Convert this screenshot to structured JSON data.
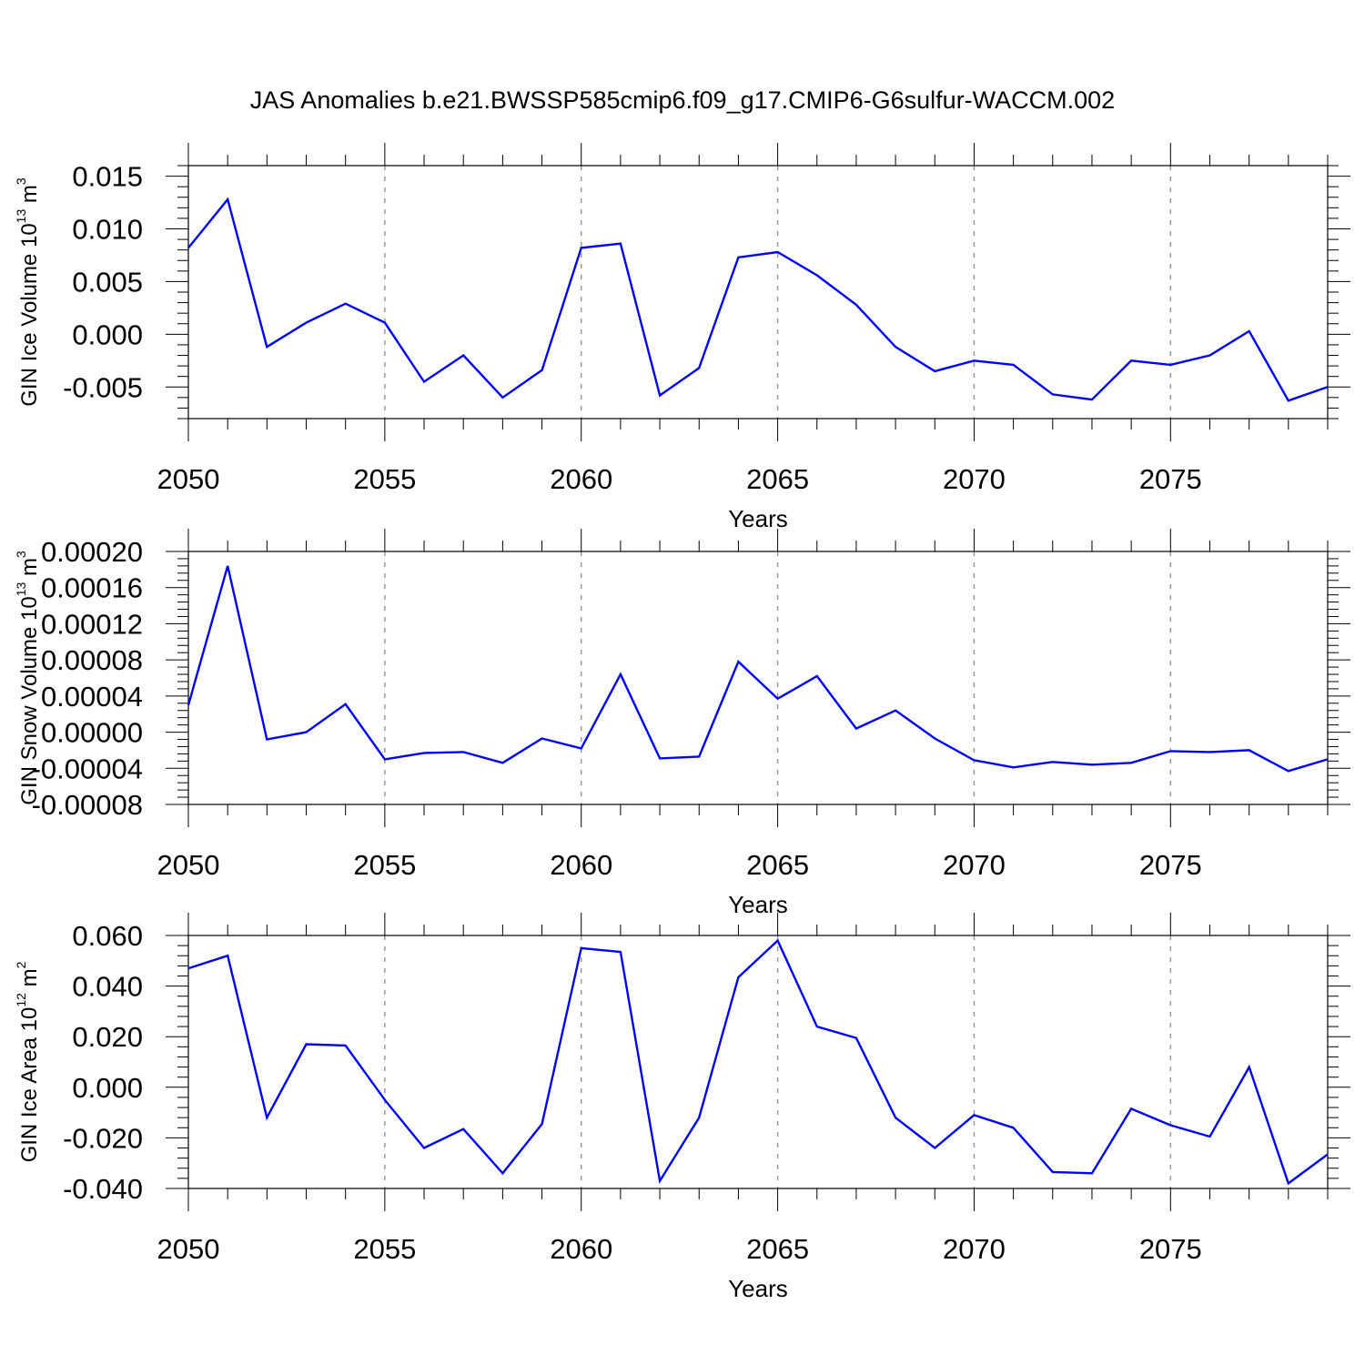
{
  "title": "JAS Anomalies b.e21.BWSSP585cmip6.f09_g17.CMIP6-G6sulfur-WACCM.002",
  "colors": {
    "series": "#0000ff",
    "axis": "#000000",
    "grid": "#999999"
  },
  "chart_data": [
    {
      "type": "line",
      "xlabel": "Years",
      "ylabel": {
        "text": "GIN Ice Volume 10",
        "exp1": "13",
        "mid": " m",
        "exp2": "3"
      },
      "xlim": [
        2050,
        2079
      ],
      "ylim": [
        -0.008,
        0.016
      ],
      "xticks": [
        2050,
        2055,
        2060,
        2065,
        2070,
        2075
      ],
      "xtick_labels": [
        "2050",
        "2055",
        "2060",
        "2065",
        "2070",
        "2075"
      ],
      "yticks": [
        0.015,
        0.01,
        0.005,
        0.0,
        -0.005
      ],
      "ytick_labels": [
        "0.015",
        "0.010",
        "0.005",
        "0.000",
        "-0.005"
      ],
      "grid": "vertical dashed at major x ticks",
      "x": [
        2050,
        2051,
        2052,
        2053,
        2054,
        2055,
        2056,
        2057,
        2058,
        2059,
        2060,
        2061,
        2062,
        2063,
        2064,
        2065,
        2066,
        2067,
        2068,
        2069,
        2070,
        2071,
        2072,
        2073,
        2074,
        2075,
        2076,
        2077,
        2078,
        2079
      ],
      "values": [
        0.0082,
        0.0128,
        -0.0012,
        0.0011,
        0.0029,
        0.0011,
        -0.0045,
        -0.002,
        -0.006,
        -0.0034,
        0.0082,
        0.0086,
        -0.0058,
        -0.0032,
        0.0073,
        0.0078,
        0.0056,
        0.0028,
        -0.0012,
        -0.0035,
        -0.0025,
        -0.0029,
        -0.0057,
        -0.0062,
        -0.0025,
        -0.0029,
        -0.002,
        0.0003,
        -0.0063,
        -0.005
      ]
    },
    {
      "type": "line",
      "xlabel": "Years",
      "ylabel": {
        "text": "GIN Snow Volume 10",
        "exp1": "13",
        "mid": " m",
        "exp2": "3"
      },
      "xlim": [
        2050,
        2079
      ],
      "ylim": [
        -8e-05,
        0.0002
      ],
      "xticks": [
        2050,
        2055,
        2060,
        2065,
        2070,
        2075
      ],
      "xtick_labels": [
        "2050",
        "2055",
        "2060",
        "2065",
        "2070",
        "2075"
      ],
      "yticks": [
        0.0002,
        0.00016,
        0.00012,
        8e-05,
        4e-05,
        0.0,
        -4e-05,
        -8e-05
      ],
      "ytick_labels": [
        "0.00020",
        "0.00016",
        "0.00012",
        "0.00008",
        "0.00004",
        "0.00000",
        "-0.00004",
        "-0.00008"
      ],
      "grid": "vertical dashed at major x ticks",
      "x": [
        2050,
        2051,
        2052,
        2053,
        2054,
        2055,
        2056,
        2057,
        2058,
        2059,
        2060,
        2061,
        2062,
        2063,
        2064,
        2065,
        2066,
        2067,
        2068,
        2069,
        2070,
        2071,
        2072,
        2073,
        2074,
        2075,
        2076,
        2077,
        2078,
        2079
      ],
      "values": [
        3e-05,
        0.000184,
        -8e-06,
        0.0,
        3.1e-05,
        -3e-05,
        -2.3e-05,
        -2.2e-05,
        -3.4e-05,
        -7e-06,
        -1.8e-05,
        6.4e-05,
        -2.9e-05,
        -2.7e-05,
        7.8e-05,
        3.7e-05,
        6.2e-05,
        4e-06,
        2.4e-05,
        -7e-06,
        -3.1e-05,
        -3.9e-05,
        -3.3e-05,
        -3.6e-05,
        -3.4e-05,
        -2.1e-05,
        -2.2e-05,
        -2e-05,
        -4.3e-05,
        -3e-05
      ]
    },
    {
      "type": "line",
      "xlabel": "Years",
      "ylabel": {
        "text": "GIN Ice Area 10",
        "exp1": "12",
        "mid": " m",
        "exp2": "2"
      },
      "xlim": [
        2050,
        2079
      ],
      "ylim": [
        -0.04,
        0.06
      ],
      "xticks": [
        2050,
        2055,
        2060,
        2065,
        2070,
        2075
      ],
      "xtick_labels": [
        "2050",
        "2055",
        "2060",
        "2065",
        "2070",
        "2075"
      ],
      "yticks": [
        0.06,
        0.04,
        0.02,
        0.0,
        -0.02,
        -0.04
      ],
      "ytick_labels": [
        "0.060",
        "0.040",
        "0.020",
        "0.000",
        "-0.020",
        "-0.040"
      ],
      "grid": "vertical dashed at major x ticks",
      "x": [
        2050,
        2051,
        2052,
        2053,
        2054,
        2055,
        2056,
        2057,
        2058,
        2059,
        2060,
        2061,
        2062,
        2063,
        2064,
        2065,
        2066,
        2067,
        2068,
        2069,
        2070,
        2071,
        2072,
        2073,
        2074,
        2075,
        2076,
        2077,
        2078,
        2079
      ],
      "values": [
        0.047,
        0.052,
        -0.012,
        0.017,
        0.0165,
        -0.005,
        -0.024,
        -0.0165,
        -0.034,
        -0.0145,
        0.055,
        0.0535,
        -0.037,
        -0.012,
        0.0435,
        0.058,
        0.024,
        0.0195,
        -0.012,
        -0.024,
        -0.011,
        -0.016,
        -0.0335,
        -0.034,
        -0.0085,
        -0.015,
        -0.0195,
        0.008,
        -0.038,
        -0.0265
      ]
    }
  ]
}
